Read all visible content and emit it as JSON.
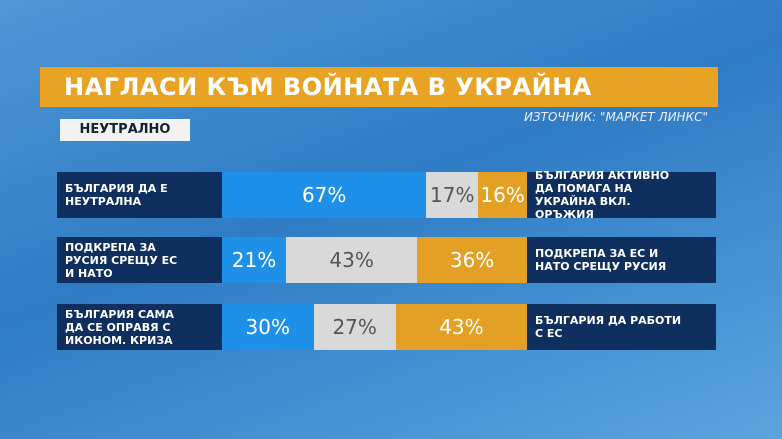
{
  "chart_data": {
    "type": "stacked-bar",
    "title": "НАГЛАСИ КЪМ ВОЙНАТА В УКРАЙНА",
    "subtitle": "НЕУТРАЛНО",
    "source": "ИЗТОЧНИК: \"МАРКЕТ ЛИНКС\"",
    "categories": [
      "БЪЛГАРИЯ ДА Е НЕУТРАЛНА",
      "ПОДКРЕПА ЗА РУСИЯ СРЕЩУ ЕС И НАТО",
      "БЪЛГАРИЯ САМА ДА СЕ ОПРАВЯ С ИКОНОМ. КРИЗА"
    ],
    "right_labels": [
      "БЪЛГАРИЯ АКТИВНО ДА ПОМАГА НА УКРАЙНА ВКЛ. ОРЪЖИЯ",
      "ПОДКРЕПА ЗА ЕС И НАТО СРЕЩУ РУСИЯ",
      "БЪЛГАРИЯ ДА РАБОТИ С ЕС"
    ],
    "xlim": [
      0,
      100
    ],
    "series": [
      {
        "color": "#1e90e8",
        "label_color": "#ffffff",
        "values": [
          67,
          21,
          30
        ],
        "value_labels": [
          "67%",
          "21%",
          "30%"
        ]
      },
      {
        "color": "#d9d9d9",
        "label_color": "#555555",
        "values": [
          17,
          43,
          27
        ],
        "value_labels": [
          "17%",
          "43%",
          "27%"
        ]
      },
      {
        "color": "#e3a024",
        "label_color": "#ffffff",
        "values": [
          16,
          36,
          43
        ],
        "value_labels": [
          "16%",
          "36%",
          "43%"
        ]
      }
    ]
  }
}
